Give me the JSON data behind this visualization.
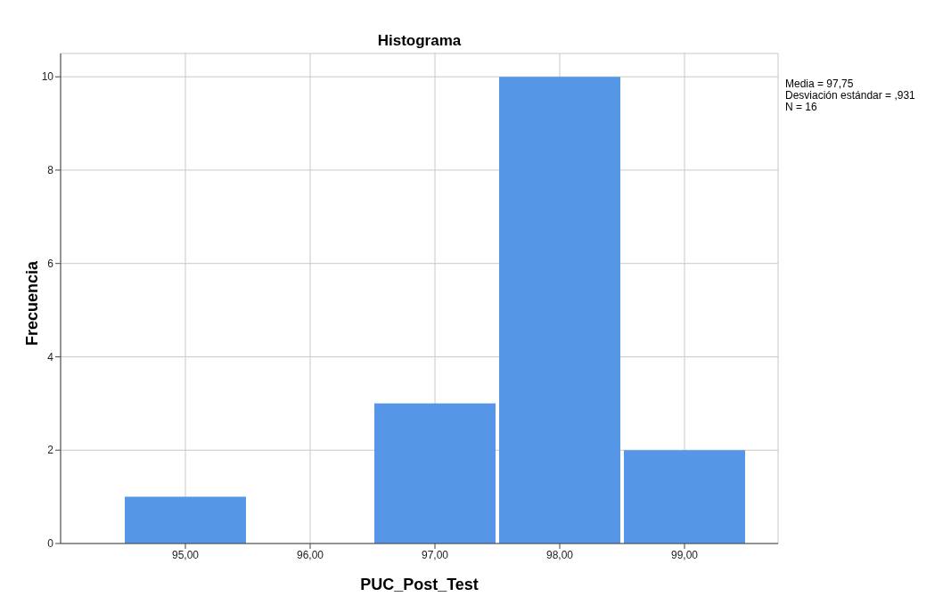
{
  "chart_data": {
    "type": "histogram",
    "title": "Histograma",
    "xlabel": "PUC_Post_Test",
    "ylabel": "Frecuencia",
    "bins": [
      94.5,
      95.5,
      96.5,
      97.5,
      98.5,
      99.5
    ],
    "values": [
      1,
      0,
      3,
      10,
      2
    ],
    "color": "#5596e6",
    "xlim": [
      94.0,
      99.75
    ],
    "xticks": [
      {
        "value": 95,
        "label": "95,00"
      },
      {
        "value": 96,
        "label": "96,00"
      },
      {
        "value": 97,
        "label": "97,00"
      },
      {
        "value": 98,
        "label": "98,00"
      },
      {
        "value": 99,
        "label": "99,00"
      }
    ],
    "ylim": [
      0,
      10.5
    ],
    "yticks": [
      0,
      2,
      4,
      6,
      8,
      10
    ],
    "grid": true,
    "annotations": [
      "Media = 97,75",
      "Desviación estándar = ,931",
      "N = 16"
    ]
  }
}
